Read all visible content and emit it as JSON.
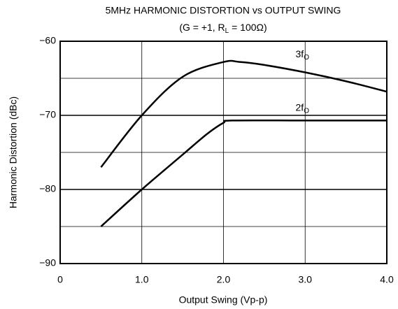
{
  "chart_data": {
    "type": "line",
    "title": "5MHz HARMONIC DISTORTION vs OUTPUT SWING",
    "subtitle": [
      "(G = +1, R",
      "L",
      " = 100Ω)"
    ],
    "xlabel": "Output Swing (Vp-p)",
    "ylabel": "Harmonic Distortion (dBc)",
    "xlim": [
      0,
      4
    ],
    "ylim": [
      -90,
      -60
    ],
    "xticks": [
      0,
      {
        "value": 1,
        "label": "1.0"
      },
      {
        "value": 2,
        "label": "2.0"
      },
      {
        "value": 3,
        "label": "3.0"
      },
      {
        "value": 4,
        "label": "4.0"
      }
    ],
    "yticks": [
      {
        "value": -60,
        "label": "−60"
      },
      {
        "value": -70,
        "label": "−70"
      },
      {
        "value": -80,
        "label": "−80"
      },
      {
        "value": -90,
        "label": "−90"
      }
    ],
    "minor_yticks": [
      -65,
      -75,
      -85
    ],
    "grid": true,
    "series": [
      {
        "name": "3f",
        "name_sub": "O",
        "color": "#000000",
        "x": [
          0.5,
          1.0,
          1.5,
          2.0,
          2.2,
          2.5,
          3.0,
          3.5,
          4.0
        ],
        "values": [
          -77,
          -70,
          -64.8,
          -62.8,
          -62.8,
          -63.2,
          -64.2,
          -65.4,
          -66.8
        ]
      },
      {
        "name": "2f",
        "name_sub": "O",
        "color": "#000000",
        "x": [
          0.5,
          1.0,
          1.5,
          1.8,
          2.0,
          2.1,
          3.0,
          4.0
        ],
        "values": [
          -85,
          -80,
          -75.3,
          -72.5,
          -71,
          -70.7,
          -70.7,
          -70.7
        ]
      }
    ]
  }
}
